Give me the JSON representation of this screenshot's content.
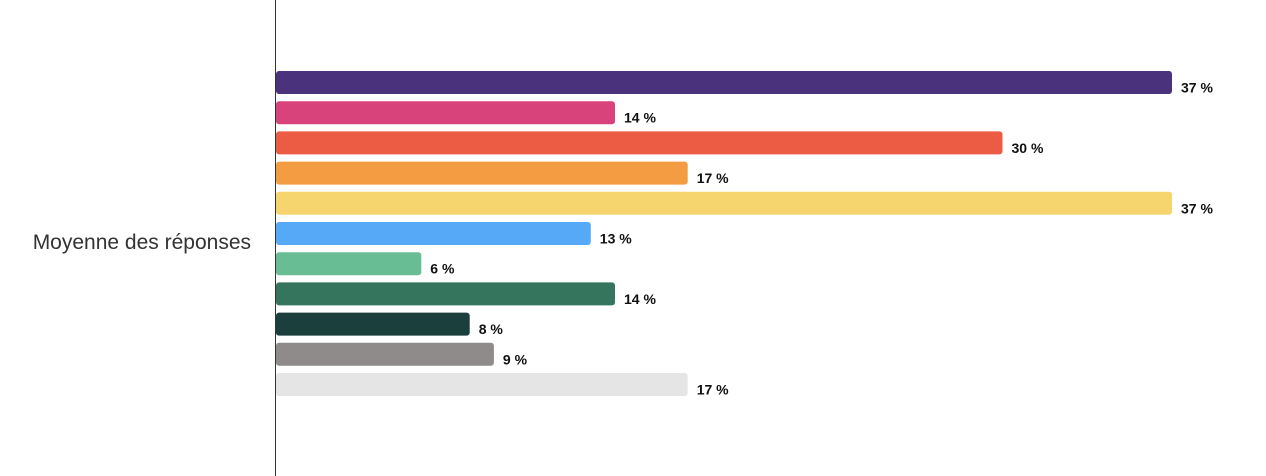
{
  "chart_data": {
    "type": "bar",
    "orientation": "horizontal",
    "categories": [
      "Moyenne des réponses"
    ],
    "value_suffix": " %",
    "xlim": [
      0,
      37
    ],
    "grid": false,
    "legend": "none",
    "series": [
      {
        "values": [
          37
        ],
        "color": "#4a327d"
      },
      {
        "values": [
          14
        ],
        "color": "#d9437c"
      },
      {
        "values": [
          30
        ],
        "color": "#ec5b43"
      },
      {
        "values": [
          17
        ],
        "color": "#f39c42"
      },
      {
        "values": [
          37
        ],
        "color": "#f7d56e"
      },
      {
        "values": [
          13
        ],
        "color": "#56a9f6"
      },
      {
        "values": [
          6
        ],
        "color": "#69bd95"
      },
      {
        "values": [
          14
        ],
        "color": "#36755d"
      },
      {
        "values": [
          8
        ],
        "color": "#1b3f3c"
      },
      {
        "values": [
          9
        ],
        "color": "#8f8b8a"
      },
      {
        "values": [
          17
        ],
        "color": "#e5e5e5"
      }
    ],
    "value_labels": [
      "37 %",
      "14 %",
      "30 %",
      "17 %",
      "37 %",
      "13 %",
      "6 %",
      "14 %",
      "8 %",
      "9 %",
      "17 %"
    ]
  }
}
